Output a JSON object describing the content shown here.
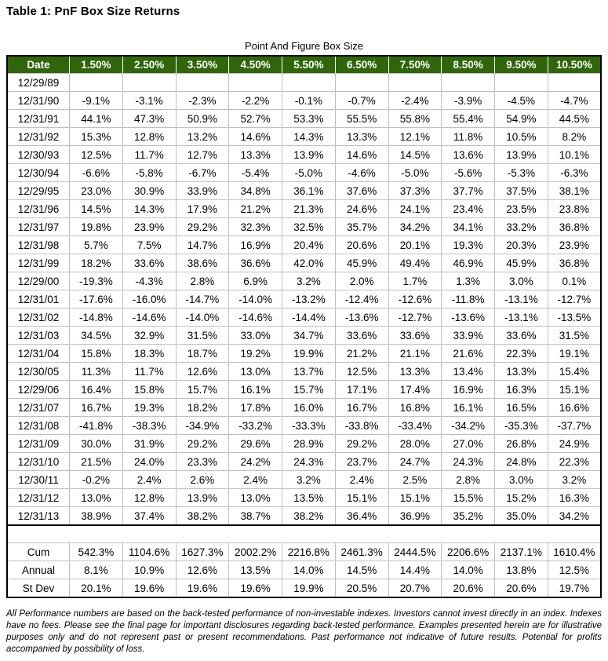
{
  "title": "Table 1: PnF Box Size Returns",
  "table": {
    "caption": "Point And Figure Box Size",
    "columns": [
      "Date",
      "1.50%",
      "2.50%",
      "3.50%",
      "4.50%",
      "5.50%",
      "6.50%",
      "7.50%",
      "8.50%",
      "9.50%",
      "10.50%"
    ],
    "rows": [
      {
        "date": "12/29/89",
        "values": [
          "",
          "",
          "",
          "",
          "",
          "",
          "",
          "",
          "",
          ""
        ]
      },
      {
        "date": "12/31/90",
        "values": [
          "-9.1%",
          "-3.1%",
          "-2.3%",
          "-2.2%",
          "-0.1%",
          "-0.7%",
          "-2.4%",
          "-3.9%",
          "-4.5%",
          "-4.7%"
        ]
      },
      {
        "date": "12/31/91",
        "values": [
          "44.1%",
          "47.3%",
          "50.9%",
          "52.7%",
          "53.3%",
          "55.5%",
          "55.8%",
          "55.4%",
          "54.9%",
          "44.5%"
        ]
      },
      {
        "date": "12/31/92",
        "values": [
          "15.3%",
          "12.8%",
          "13.2%",
          "14.6%",
          "14.3%",
          "13.3%",
          "12.1%",
          "11.8%",
          "10.5%",
          "8.2%"
        ]
      },
      {
        "date": "12/30/93",
        "values": [
          "12.5%",
          "11.7%",
          "12.7%",
          "13.3%",
          "13.9%",
          "14.6%",
          "14.5%",
          "13.6%",
          "13.9%",
          "10.1%"
        ]
      },
      {
        "date": "12/30/94",
        "values": [
          "-6.6%",
          "-5.8%",
          "-6.7%",
          "-5.4%",
          "-5.0%",
          "-4.6%",
          "-5.0%",
          "-5.6%",
          "-5.3%",
          "-6.3%"
        ]
      },
      {
        "date": "12/29/95",
        "values": [
          "23.0%",
          "30.9%",
          "33.9%",
          "34.8%",
          "36.1%",
          "37.6%",
          "37.3%",
          "37.7%",
          "37.5%",
          "38.1%"
        ]
      },
      {
        "date": "12/31/96",
        "values": [
          "14.5%",
          "14.3%",
          "17.9%",
          "21.2%",
          "21.3%",
          "24.6%",
          "24.1%",
          "23.4%",
          "23.5%",
          "23.8%"
        ]
      },
      {
        "date": "12/31/97",
        "values": [
          "19.8%",
          "23.9%",
          "29.2%",
          "32.3%",
          "32.5%",
          "35.7%",
          "34.2%",
          "34.1%",
          "33.2%",
          "36.8%"
        ]
      },
      {
        "date": "12/31/98",
        "values": [
          "5.7%",
          "7.5%",
          "14.7%",
          "16.9%",
          "20.4%",
          "20.6%",
          "20.1%",
          "19.3%",
          "20.3%",
          "23.9%"
        ]
      },
      {
        "date": "12/31/99",
        "values": [
          "18.2%",
          "33.6%",
          "38.6%",
          "36.6%",
          "42.0%",
          "45.9%",
          "49.4%",
          "46.9%",
          "45.9%",
          "36.8%"
        ]
      },
      {
        "date": "12/29/00",
        "values": [
          "-19.3%",
          "-4.3%",
          "2.8%",
          "6.9%",
          "3.2%",
          "2.0%",
          "1.7%",
          "1.3%",
          "3.0%",
          "0.1%"
        ]
      },
      {
        "date": "12/31/01",
        "values": [
          "-17.6%",
          "-16.0%",
          "-14.7%",
          "-14.0%",
          "-13.2%",
          "-12.4%",
          "-12.6%",
          "-11.8%",
          "-13.1%",
          "-12.7%"
        ]
      },
      {
        "date": "12/31/02",
        "values": [
          "-14.8%",
          "-14.6%",
          "-14.0%",
          "-14.6%",
          "-14.4%",
          "-13.6%",
          "-12.7%",
          "-13.6%",
          "-13.1%",
          "-13.5%"
        ]
      },
      {
        "date": "12/31/03",
        "values": [
          "34.5%",
          "32.9%",
          "31.5%",
          "33.0%",
          "34.7%",
          "33.6%",
          "33.6%",
          "33.9%",
          "33.6%",
          "31.5%"
        ]
      },
      {
        "date": "12/31/04",
        "values": [
          "15.8%",
          "18.3%",
          "18.7%",
          "19.2%",
          "19.9%",
          "21.2%",
          "21.1%",
          "21.6%",
          "22.3%",
          "19.1%"
        ]
      },
      {
        "date": "12/30/05",
        "values": [
          "11.3%",
          "11.7%",
          "12.6%",
          "13.0%",
          "13.7%",
          "12.5%",
          "13.3%",
          "13.4%",
          "13.3%",
          "15.4%"
        ]
      },
      {
        "date": "12/29/06",
        "values": [
          "16.4%",
          "15.8%",
          "15.7%",
          "16.1%",
          "15.7%",
          "17.1%",
          "17.4%",
          "16.9%",
          "16.3%",
          "15.1%"
        ]
      },
      {
        "date": "12/31/07",
        "values": [
          "16.7%",
          "19.3%",
          "18.2%",
          "17.8%",
          "16.0%",
          "16.7%",
          "16.8%",
          "16.1%",
          "16.5%",
          "16.6%"
        ]
      },
      {
        "date": "12/31/08",
        "values": [
          "-41.8%",
          "-38.3%",
          "-34.9%",
          "-33.2%",
          "-33.3%",
          "-33.8%",
          "-33.4%",
          "-34.2%",
          "-35.3%",
          "-37.7%"
        ]
      },
      {
        "date": "12/31/09",
        "values": [
          "30.0%",
          "31.9%",
          "29.2%",
          "29.6%",
          "28.9%",
          "29.2%",
          "28.0%",
          "27.0%",
          "26.8%",
          "24.9%"
        ]
      },
      {
        "date": "12/31/10",
        "values": [
          "21.5%",
          "24.0%",
          "23.3%",
          "24.2%",
          "24.3%",
          "23.7%",
          "24.7%",
          "24.3%",
          "24.8%",
          "22.3%"
        ]
      },
      {
        "date": "12/30/11",
        "values": [
          "-0.2%",
          "2.4%",
          "2.6%",
          "2.4%",
          "3.2%",
          "2.4%",
          "2.5%",
          "2.8%",
          "3.0%",
          "3.2%"
        ]
      },
      {
        "date": "12/31/12",
        "values": [
          "13.0%",
          "12.8%",
          "13.9%",
          "13.0%",
          "13.5%",
          "15.1%",
          "15.1%",
          "15.5%",
          "15.2%",
          "16.3%"
        ]
      },
      {
        "date": "12/31/13",
        "values": [
          "38.9%",
          "37.4%",
          "38.2%",
          "38.7%",
          "38.2%",
          "36.4%",
          "36.9%",
          "35.2%",
          "35.0%",
          "34.2%"
        ]
      }
    ],
    "summary": [
      {
        "label": "Cum",
        "values": [
          "542.3%",
          "1104.6%",
          "1627.3%",
          "2002.2%",
          "2216.8%",
          "2461.3%",
          "2444.5%",
          "2206.6%",
          "2137.1%",
          "1610.4%"
        ]
      },
      {
        "label": "Annual",
        "values": [
          "8.1%",
          "10.9%",
          "12.6%",
          "13.5%",
          "14.0%",
          "14.5%",
          "14.4%",
          "14.0%",
          "13.8%",
          "12.5%"
        ]
      },
      {
        "label": "St Dev",
        "values": [
          "20.1%",
          "19.6%",
          "19.6%",
          "19.6%",
          "19.9%",
          "20.5%",
          "20.7%",
          "20.6%",
          "20.6%",
          "19.7%"
        ]
      }
    ]
  },
  "footer": "All Performance numbers are based on the back-tested performance of non-investable indexes.  Investors cannot invest directly in an index. Indexes have no fees. Please see the final page for important disclosures regarding back-tested performance.  Examples presented herein are for illustrative purposes only and do not represent past or present recommendations.  Past performance not indicative of future results.  Potential for profits accompanied by possibility of loss.",
  "colors": {
    "header_bg": "#2f660a",
    "header_text": "#ffffff",
    "grid": "#bfbfbf",
    "border": "#000000"
  }
}
